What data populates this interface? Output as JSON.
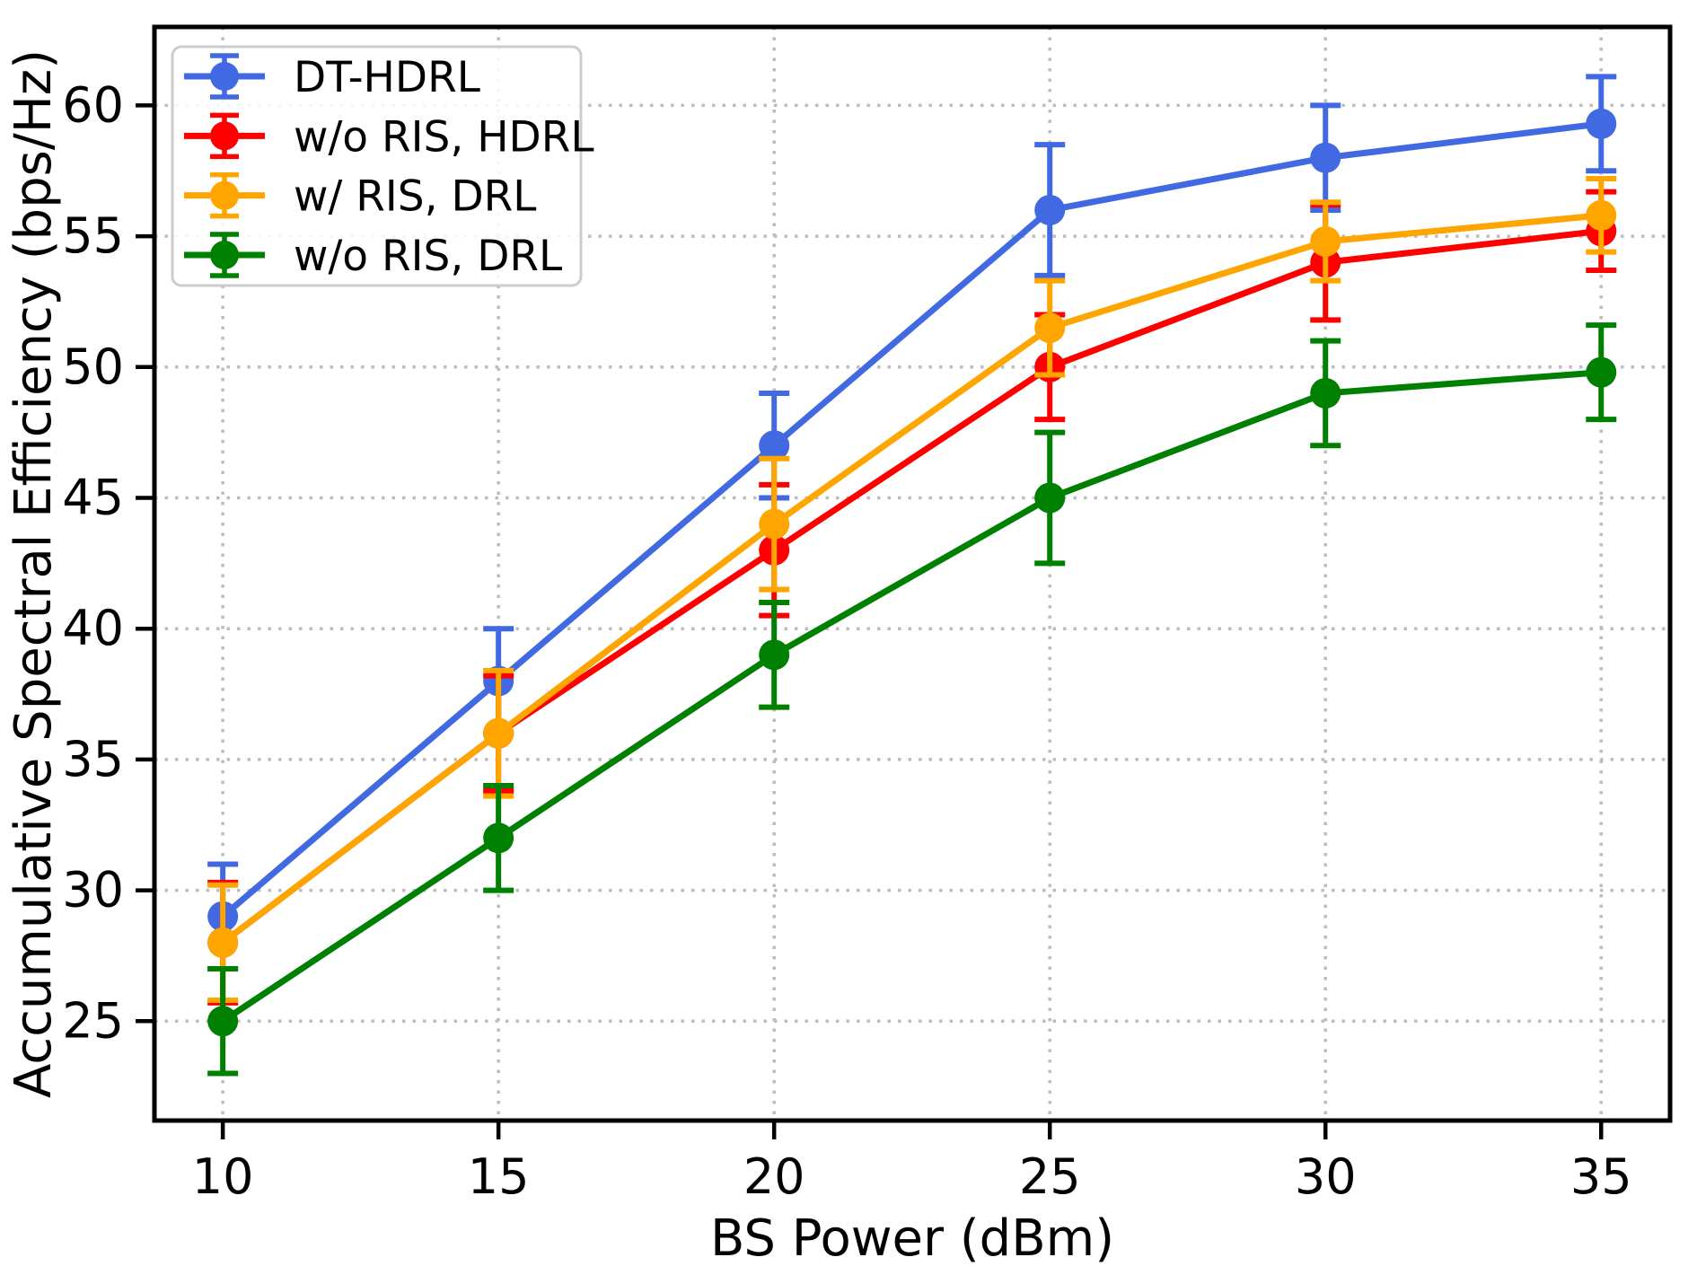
{
  "figure": {
    "background": "#ffffff"
  },
  "chart_data": {
    "type": "line",
    "title": "",
    "xlabel": "BS Power (dBm)",
    "ylabel": "Accumulative Spectral Efficiency (bps/Hz)",
    "x": [
      10,
      15,
      20,
      25,
      30,
      35
    ],
    "xticks": [
      10,
      15,
      20,
      25,
      30,
      35
    ],
    "yticks": [
      25,
      30,
      35,
      40,
      45,
      50,
      55,
      60
    ],
    "xlim": [
      8.76,
      36.25
    ],
    "ylim": [
      21.2,
      63.0
    ],
    "grid": true,
    "grid_style": "dotted",
    "legend_position": "upper-left",
    "error_bars": true,
    "colors": {
      "grid": "#bdbdbd",
      "axis": "#000000",
      "legend_border": "#cccccc"
    },
    "series": [
      {
        "name": "DT-HDRL",
        "color": "#4169E1",
        "values": [
          29,
          38,
          47,
          56,
          58,
          59.3
        ],
        "yerr": [
          2,
          2,
          2,
          2.5,
          2,
          1.8
        ]
      },
      {
        "name": "w/o RIS, HDRL",
        "color": "#FF0000",
        "values": [
          28,
          36,
          43,
          50,
          54,
          55.2
        ],
        "yerr": [
          2.3,
          2.2,
          2.5,
          2,
          2.2,
          1.5
        ]
      },
      {
        "name": "w/ RIS, DRL",
        "color": "#FFA500",
        "values": [
          28,
          36,
          44,
          51.5,
          54.8,
          55.8
        ],
        "yerr": [
          2.2,
          2.4,
          2.5,
          1.8,
          1.5,
          1.4
        ]
      },
      {
        "name": "w/o RIS, DRL",
        "color": "#008000",
        "values": [
          25,
          32,
          39,
          45,
          49,
          49.8
        ],
        "yerr": [
          2,
          2,
          2,
          2.5,
          2,
          1.8
        ]
      }
    ]
  }
}
